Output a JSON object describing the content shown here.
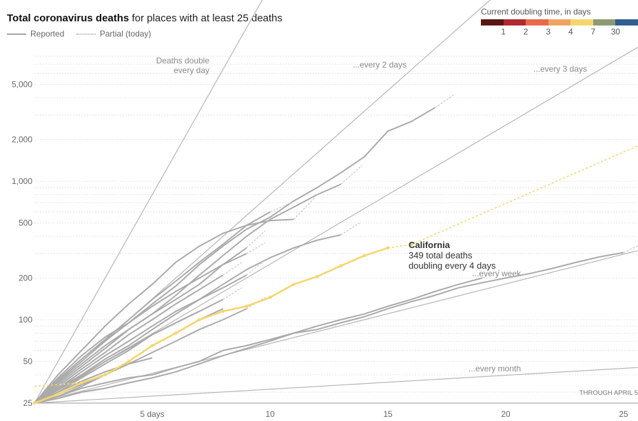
{
  "header": {
    "title_bold": "Total coronavirus deaths",
    "title_rest": " for places with at least 25 deaths",
    "legend_reported": "Reported",
    "legend_partial": "Partial (today)"
  },
  "doubling_scale": {
    "title": "Current doubling time, in days",
    "colors": [
      "#5a1812",
      "#b02a30",
      "#e96a4a",
      "#eea563",
      "#f5d66e",
      "#8b9a74",
      "#2f5e8f"
    ],
    "labels": [
      "1",
      "2",
      "3",
      "4",
      "7",
      "30"
    ]
  },
  "footer": {
    "through": "THROUGH APRIL 5"
  },
  "colors": {
    "grey_line": "#aaaaaa",
    "ref_line": "#b5b5b5",
    "highlight": "#f5d66e",
    "grid": "#dddddd"
  },
  "chart_data": {
    "type": "line",
    "title": "Total coronavirus deaths for places with at least 25 deaths",
    "x_axis": {
      "label_suffix_first": " days",
      "ticks": [
        5,
        10,
        15,
        20,
        25
      ],
      "range": [
        0,
        25.6
      ]
    },
    "y_axis": {
      "scale": "log",
      "tick_values": [
        25,
        50,
        100,
        200,
        500,
        1000,
        2000,
        5000
      ],
      "tick_labels": [
        "25",
        "50",
        "100",
        "200",
        "500",
        "1,000",
        "2,000",
        "5,000"
      ],
      "range": [
        25,
        9000
      ],
      "minor_grid": [
        30,
        40,
        60,
        70,
        80,
        90,
        300,
        400,
        600,
        700,
        800,
        900,
        3000,
        4000,
        6000,
        7000,
        8000
      ]
    },
    "reference_lines": [
      {
        "label": "Deaths double\nevery day",
        "doubling_days": 1
      },
      {
        "label": "...every 2 days",
        "doubling_days": 2
      },
      {
        "label": "...every 3 days",
        "doubling_days": 3
      },
      {
        "label": "...every week",
        "doubling_days": 7
      },
      {
        "label": "...every month",
        "doubling_days": 30
      }
    ],
    "highlight": {
      "name": "California",
      "line1": "349 total deaths",
      "line2": "doubling every 4 days",
      "x": [
        0,
        1,
        2,
        3,
        4,
        5,
        6,
        7,
        8,
        9,
        10,
        11,
        12,
        13,
        14,
        15
      ],
      "y": [
        25,
        29,
        35,
        40,
        50,
        65,
        80,
        100,
        115,
        125,
        145,
        180,
        205,
        245,
        290,
        330
      ],
      "partial": {
        "x": [
          15,
          16
        ],
        "y": [
          330,
          349
        ]
      },
      "projection_to": {
        "x": 25.6,
        "y": 1800
      },
      "projection_from": {
        "x": 0,
        "y": 33
      }
    },
    "series": [
      {
        "name": "place-a",
        "x": [
          0,
          1,
          2,
          3,
          4,
          5,
          6,
          7,
          8,
          9,
          10,
          11,
          12,
          13,
          14,
          15,
          16,
          17
        ],
        "y": [
          25,
          38,
          55,
          75,
          95,
          130,
          175,
          250,
          340,
          450,
          550,
          720,
          900,
          1150,
          1500,
          2300,
          2700,
          3400
        ],
        "partial": [
          17.8,
          4200
        ]
      },
      {
        "name": "place-b",
        "x": [
          0,
          1,
          2,
          3,
          4,
          5,
          6,
          7,
          8,
          9,
          10,
          11,
          12,
          13
        ],
        "y": [
          25,
          35,
          48,
          65,
          85,
          110,
          150,
          210,
          290,
          400,
          530,
          650,
          800,
          950
        ],
        "partial": [
          13.9,
          1300
        ]
      },
      {
        "name": "place-c",
        "x": [
          0,
          1,
          2,
          3,
          4,
          5,
          6,
          7,
          8,
          9,
          10,
          11
        ],
        "y": [
          25,
          40,
          60,
          90,
          130,
          180,
          260,
          340,
          420,
          480,
          520,
          530
        ],
        "partial": [
          11.9,
          760
        ]
      },
      {
        "name": "place-d",
        "x": [
          0,
          1,
          2,
          3,
          4,
          5,
          6,
          7,
          8,
          9,
          10,
          11,
          12,
          13
        ],
        "y": [
          25,
          32,
          40,
          52,
          65,
          85,
          110,
          140,
          180,
          230,
          280,
          330,
          375,
          410
        ],
        "partial": [
          13.8,
          500
        ]
      },
      {
        "name": "place-e",
        "x": [
          0,
          1,
          2,
          3,
          4,
          5,
          6,
          7,
          8,
          9,
          10,
          11,
          12,
          13,
          14,
          15,
          16,
          17,
          18,
          19,
          20,
          21,
          22,
          23,
          24,
          25
        ],
        "y": [
          25,
          28,
          32,
          35,
          38,
          40,
          45,
          50,
          60,
          65,
          72,
          80,
          85,
          95,
          105,
          120,
          135,
          150,
          170,
          185,
          200,
          215,
          235,
          260,
          285,
          305
        ],
        "partial": [
          25.6,
          340
        ]
      },
      {
        "name": "place-f",
        "x": [
          0,
          1,
          2,
          3,
          4,
          5,
          6,
          7,
          8,
          9,
          10,
          11,
          12,
          13,
          14,
          15,
          16,
          17,
          18,
          19
        ],
        "y": [
          25,
          27,
          30,
          32,
          35,
          38,
          42,
          48,
          55,
          62,
          70,
          80,
          90,
          100,
          110,
          125,
          140,
          160,
          180,
          200
        ],
        "partial": [
          19.8,
          230
        ]
      },
      {
        "name": "place-g",
        "x": [
          0,
          1,
          2,
          3,
          4,
          5,
          6,
          7,
          8,
          9
        ],
        "y": [
          25,
          34,
          46,
          62,
          85,
          110,
          140,
          180,
          250,
          330
        ],
        "partial": [
          9.8,
          440
        ]
      },
      {
        "name": "place-h",
        "x": [
          0,
          1,
          2,
          3,
          4,
          5,
          6,
          7,
          8,
          9
        ],
        "y": [
          25,
          32,
          42,
          55,
          70,
          90,
          115,
          140,
          170,
          210
        ],
        "partial": [
          9.8,
          270
        ]
      },
      {
        "name": "place-i",
        "x": [
          0,
          1,
          2,
          3,
          4,
          5,
          6,
          7,
          8,
          9
        ],
        "y": [
          25,
          36,
          50,
          70,
          95,
          125,
          160,
          200,
          250,
          300
        ],
        "partial": [
          9.8,
          360
        ]
      },
      {
        "name": "place-j",
        "x": [
          0,
          1,
          2,
          3,
          4,
          5,
          6,
          7,
          8
        ],
        "y": [
          25,
          30,
          38,
          48,
          60,
          78,
          95,
          115,
          140
        ],
        "partial": [
          8.8,
          170
        ]
      },
      {
        "name": "place-k",
        "x": [
          0,
          1,
          2,
          3,
          4,
          5,
          6,
          7,
          8,
          9
        ],
        "y": [
          25,
          29,
          34,
          40,
          48,
          58,
          70,
          85,
          100,
          120
        ],
        "partial": [
          9.8,
          145
        ]
      },
      {
        "name": "place-l",
        "x": [
          0,
          1,
          2,
          3,
          4,
          5
        ],
        "y": [
          25,
          30,
          36,
          42,
          48,
          53
        ]
      },
      {
        "name": "place-m",
        "x": [
          0,
          1,
          2,
          3,
          4,
          5,
          6,
          7,
          8
        ],
        "y": [
          25,
          33,
          44,
          58,
          78,
          100,
          130,
          165,
          210
        ],
        "partial": [
          8.8,
          260
        ]
      },
      {
        "name": "place-n",
        "x": [
          0,
          1,
          2,
          3,
          4,
          5,
          6,
          7
        ],
        "y": [
          25,
          31,
          39,
          50,
          62,
          78,
          95,
          115
        ]
      },
      {
        "name": "place-o",
        "x": [
          0,
          1,
          2,
          3,
          4,
          5,
          6,
          7,
          8
        ],
        "y": [
          25,
          28,
          33,
          40,
          50,
          65,
          80,
          100,
          120
        ]
      },
      {
        "name": "place-p",
        "x": [
          0,
          1,
          2,
          3,
          4,
          5,
          6,
          7,
          8,
          9,
          10
        ],
        "y": [
          25,
          37,
          52,
          72,
          100,
          140,
          190,
          260,
          350,
          480,
          600
        ],
        "partial": [
          10.9,
          700
        ]
      }
    ]
  }
}
